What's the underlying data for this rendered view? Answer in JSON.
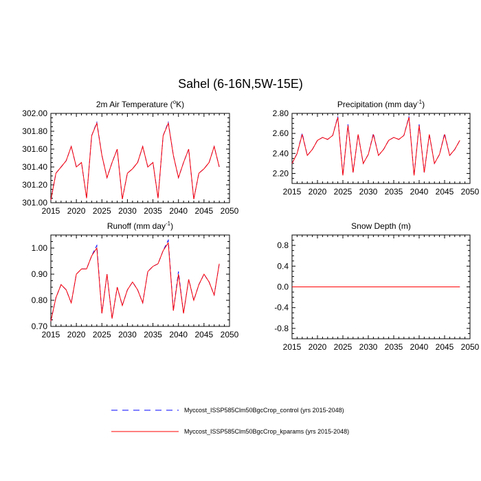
{
  "figure": {
    "title": "Sahel (6-16N,5W-15E)"
  },
  "legend": {
    "entries": [
      {
        "label": "Myccost_ISSP585Clm50BgcCrop_control (yrs 2015-2048)",
        "color": "#0000ff",
        "style": "dashed"
      },
      {
        "label": "Myccost_ISSP585Clm50BgcCrop_kparams (yrs 2015-2048)",
        "color": "#ff0000",
        "style": "solid"
      }
    ]
  },
  "chart_data": [
    {
      "type": "line",
      "title": "2m Air Temperature (",
      "title_sup": "o",
      "title_end": "K)",
      "xlabel": "",
      "ylabel": "",
      "xlim": [
        2015,
        2050
      ],
      "ylim": [
        301.0,
        302.0
      ],
      "xticks": [
        2015,
        2020,
        2025,
        2030,
        2035,
        2040,
        2045,
        2050
      ],
      "yticks": [
        301.0,
        301.2,
        301.4,
        301.6,
        301.8,
        302.0
      ],
      "ytick_labels": [
        "301.00",
        "301.20",
        "301.40",
        "301.60",
        "301.80",
        "302.00"
      ],
      "x": [
        2015,
        2016,
        2017,
        2018,
        2019,
        2020,
        2021,
        2022,
        2023,
        2024,
        2025,
        2026,
        2027,
        2028,
        2029,
        2030,
        2031,
        2032,
        2033,
        2034,
        2035,
        2036,
        2037,
        2038,
        2039,
        2040,
        2041,
        2042,
        2043,
        2044,
        2045,
        2046,
        2047,
        2048
      ],
      "series": [
        {
          "name": "control",
          "values": [
            301.03,
            301.33,
            301.4,
            301.47,
            301.63,
            301.4,
            301.45,
            301.05,
            301.75,
            301.9,
            301.53,
            301.28,
            301.45,
            301.6,
            301.04,
            301.33,
            301.38,
            301.45,
            301.63,
            301.4,
            301.45,
            301.05,
            301.75,
            301.9,
            301.53,
            301.28,
            301.45,
            301.6,
            301.04,
            301.33,
            301.38,
            301.45,
            301.63,
            301.4
          ]
        },
        {
          "name": "kparams",
          "values": [
            301.03,
            301.33,
            301.4,
            301.47,
            301.63,
            301.4,
            301.45,
            301.05,
            301.75,
            301.89,
            301.53,
            301.28,
            301.45,
            301.6,
            301.04,
            301.33,
            301.38,
            301.45,
            301.63,
            301.4,
            301.45,
            301.05,
            301.75,
            301.89,
            301.53,
            301.28,
            301.45,
            301.6,
            301.04,
            301.33,
            301.38,
            301.45,
            301.63,
            301.4
          ]
        }
      ]
    },
    {
      "type": "line",
      "title": "Precipitation (mm day",
      "title_sup": "-1",
      "title_end": ")",
      "xlabel": "",
      "ylabel": "",
      "xlim": [
        2015,
        2050
      ],
      "ylim": [
        2.1,
        2.8
      ],
      "xticks": [
        2015,
        2020,
        2025,
        2030,
        2035,
        2040,
        2045,
        2050
      ],
      "yticks": [
        2.2,
        2.4,
        2.6,
        2.8
      ],
      "ytick_labels": [
        "2.20",
        "2.40",
        "2.60",
        "2.80"
      ],
      "x": [
        2015,
        2016,
        2017,
        2018,
        2019,
        2020,
        2021,
        2022,
        2023,
        2024,
        2025,
        2026,
        2027,
        2028,
        2029,
        2030,
        2031,
        2032,
        2033,
        2034,
        2035,
        2036,
        2037,
        2038,
        2039,
        2040,
        2041,
        2042,
        2043,
        2044,
        2045,
        2046,
        2047,
        2048
      ],
      "series": [
        {
          "name": "control",
          "values": [
            2.3,
            2.4,
            2.6,
            2.38,
            2.44,
            2.53,
            2.56,
            2.54,
            2.58,
            2.77,
            2.18,
            2.69,
            2.21,
            2.59,
            2.3,
            2.39,
            2.6,
            2.38,
            2.44,
            2.53,
            2.56,
            2.54,
            2.58,
            2.77,
            2.18,
            2.69,
            2.21,
            2.59,
            2.3,
            2.39,
            2.6,
            2.38,
            2.44,
            2.53
          ]
        },
        {
          "name": "kparams",
          "values": [
            2.3,
            2.4,
            2.59,
            2.38,
            2.44,
            2.53,
            2.56,
            2.54,
            2.58,
            2.76,
            2.18,
            2.68,
            2.21,
            2.59,
            2.3,
            2.39,
            2.59,
            2.38,
            2.44,
            2.53,
            2.56,
            2.54,
            2.58,
            2.76,
            2.18,
            2.68,
            2.21,
            2.59,
            2.3,
            2.39,
            2.59,
            2.38,
            2.44,
            2.53
          ]
        }
      ]
    },
    {
      "type": "line",
      "title": "Runoff (mm day",
      "title_sup": "-1",
      "title_end": ")",
      "xlabel": "",
      "ylabel": "",
      "xlim": [
        2015,
        2050
      ],
      "ylim": [
        0.7,
        1.05
      ],
      "xticks": [
        2015,
        2020,
        2025,
        2030,
        2035,
        2040,
        2045,
        2050
      ],
      "yticks": [
        0.7,
        0.8,
        0.9,
        1.0
      ],
      "ytick_labels": [
        "0.70",
        "0.80",
        "0.90",
        "1.00"
      ],
      "x": [
        2015,
        2016,
        2017,
        2018,
        2019,
        2020,
        2021,
        2022,
        2023,
        2024,
        2025,
        2026,
        2027,
        2028,
        2029,
        2030,
        2031,
        2032,
        2033,
        2034,
        2035,
        2036,
        2037,
        2038,
        2039,
        2040,
        2041,
        2042,
        2043,
        2044,
        2045,
        2046,
        2047,
        2048
      ],
      "series": [
        {
          "name": "control",
          "values": [
            0.72,
            0.81,
            0.86,
            0.84,
            0.79,
            0.9,
            0.92,
            0.92,
            0.97,
            1.01,
            0.75,
            0.9,
            0.73,
            0.85,
            0.78,
            0.84,
            0.87,
            0.84,
            0.79,
            0.91,
            0.93,
            0.94,
            0.99,
            1.03,
            0.76,
            0.91,
            0.75,
            0.88,
            0.8,
            0.86,
            0.9,
            0.87,
            0.82,
            0.94
          ]
        },
        {
          "name": "kparams",
          "values": [
            0.72,
            0.81,
            0.86,
            0.84,
            0.79,
            0.9,
            0.92,
            0.92,
            0.97,
            1.0,
            0.75,
            0.9,
            0.73,
            0.85,
            0.78,
            0.84,
            0.87,
            0.84,
            0.79,
            0.91,
            0.93,
            0.94,
            0.99,
            1.02,
            0.76,
            0.9,
            0.75,
            0.88,
            0.8,
            0.86,
            0.9,
            0.87,
            0.82,
            0.94
          ]
        }
      ]
    },
    {
      "type": "line",
      "title": "Snow Depth (m)",
      "title_sup": "",
      "title_end": "",
      "xlabel": "",
      "ylabel": "",
      "xlim": [
        2015,
        2050
      ],
      "ylim": [
        -1.0,
        1.0
      ],
      "xticks": [
        2015,
        2020,
        2025,
        2030,
        2035,
        2040,
        2045,
        2050
      ],
      "yticks": [
        -0.8,
        -0.4,
        0.0,
        0.4,
        0.8
      ],
      "ytick_labels": [
        "-0.8",
        "-0.4",
        "0.0",
        "0.4",
        "0.8"
      ],
      "x": [
        2015,
        2048
      ],
      "series": [
        {
          "name": "control",
          "values": [
            0.0,
            0.0
          ]
        },
        {
          "name": "kparams",
          "values": [
            0.0,
            0.0
          ]
        }
      ]
    }
  ]
}
